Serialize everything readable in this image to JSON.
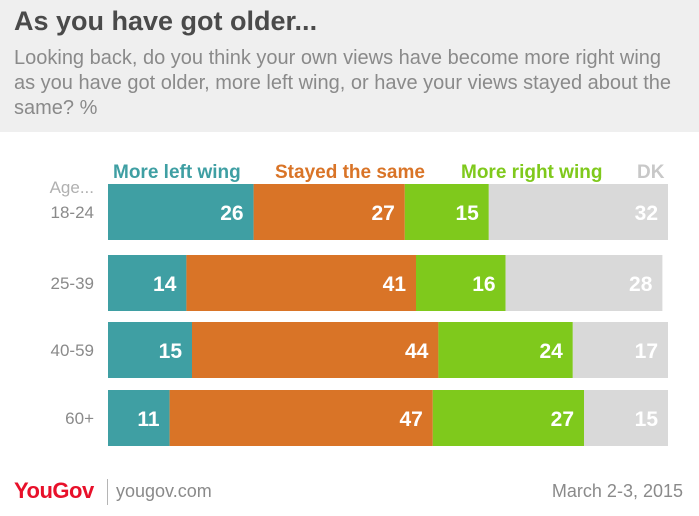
{
  "header": {
    "title": "As you have got older...",
    "subtitle": "Looking back, do you think your own views have become more right wing as you have got older, more left wing, or have your views stayed about the same? %"
  },
  "footer": {
    "logo": "YouGov",
    "site": "yougov.com",
    "date": "March 2-3, 2015"
  },
  "colors": {
    "left": "#3f9fa3",
    "same": "#d97427",
    "right": "#7fc91c",
    "dk": "#d9d9d9",
    "label_text": "#ffffff",
    "category_text": "#8a8a8a"
  },
  "chart_data": {
    "type": "bar",
    "orientation": "horizontal",
    "stacked": true,
    "category_axis_title": "Age...",
    "categories": [
      "18-24",
      "25-39",
      "40-59",
      "60+"
    ],
    "series": [
      {
        "name": "More left wing",
        "values": [
          26,
          14,
          15,
          11
        ]
      },
      {
        "name": "Stayed the same",
        "values": [
          27,
          41,
          44,
          47
        ]
      },
      {
        "name": "More right wing",
        "values": [
          15,
          16,
          24,
          27
        ]
      },
      {
        "name": "DK",
        "values": [
          32,
          28,
          17,
          15
        ]
      }
    ],
    "legend_placement": "top",
    "data_labels": true,
    "grid": false
  }
}
